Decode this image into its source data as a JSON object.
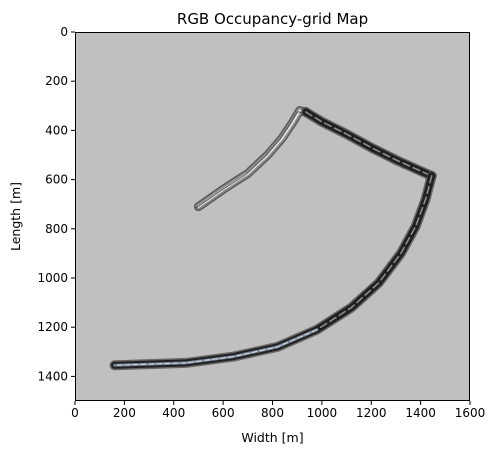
{
  "chart_data": {
    "type": "heatmap",
    "title": "RGB Occupancy-grid Map",
    "xlabel": "Width [m]",
    "ylabel": "Length [m]",
    "xlim": [
      0,
      1600
    ],
    "ylim": [
      1500,
      0
    ],
    "xticks": [
      0,
      200,
      400,
      600,
      800,
      1000,
      1200,
      1400,
      1600
    ],
    "yticks": [
      0,
      200,
      400,
      600,
      800,
      1000,
      1200,
      1400
    ],
    "grid": false,
    "colors": {
      "background": "#c0c0c0",
      "road_dark": "#202020",
      "road_mid": "#4a4a48",
      "road_light": "#e4e4e4",
      "road_blue": "#7f93aa"
    },
    "track_segments": [
      {
        "name": "upper-left-arm",
        "points": [
          [
            500,
            710
          ],
          [
            600,
            640
          ],
          [
            700,
            575
          ],
          [
            780,
            500
          ],
          [
            840,
            430
          ],
          [
            880,
            370
          ],
          [
            910,
            320
          ],
          [
            935,
            325
          ]
        ],
        "tone": "light"
      },
      {
        "name": "upper-diagonal",
        "points": [
          [
            935,
            325
          ],
          [
            1000,
            365
          ],
          [
            1100,
            415
          ],
          [
            1200,
            470
          ],
          [
            1300,
            520
          ],
          [
            1400,
            565
          ],
          [
            1445,
            585
          ]
        ],
        "tone": "dark"
      },
      {
        "name": "lower-curve",
        "points": [
          [
            1445,
            585
          ],
          [
            1420,
            680
          ],
          [
            1380,
            790
          ],
          [
            1320,
            900
          ],
          [
            1230,
            1020
          ],
          [
            1120,
            1120
          ],
          [
            980,
            1210
          ],
          [
            820,
            1280
          ],
          [
            640,
            1320
          ],
          [
            450,
            1345
          ],
          [
            300,
            1350
          ],
          [
            160,
            1355
          ]
        ],
        "tone": "dark"
      }
    ]
  }
}
